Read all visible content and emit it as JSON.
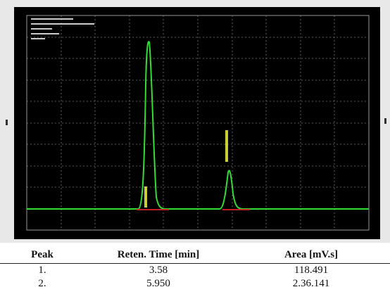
{
  "table": {
    "header": [
      "Peak",
      "Reten. Time [min]",
      "Area [mV.s]"
    ],
    "rows": [
      [
        "1.",
        "3.58",
        "118.491"
      ],
      [
        "2.",
        "5.950",
        "2.36.141"
      ]
    ]
  }
}
